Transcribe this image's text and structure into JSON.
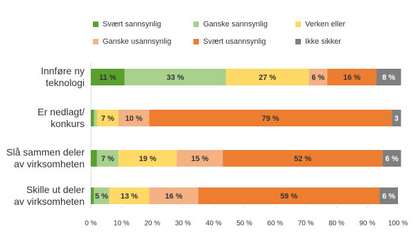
{
  "chart_data": {
    "type": "stacked-bar-horizontal",
    "categories": [
      "Innføre ny\nteknologi",
      "Er nedlagt/\nkonkurs",
      "Slå sammen deler\nav virksomheten",
      "Skille ut deler\nav virksomheten"
    ],
    "series": [
      {
        "name": "Svært sannsynlig",
        "color": "#5b9f2f",
        "values": [
          11,
          1,
          2,
          1
        ],
        "value_labels": [
          "11 %",
          null,
          null,
          null
        ]
      },
      {
        "name": "Ganske sannsynlig",
        "color": "#a9d18e",
        "values": [
          33,
          1,
          7,
          5
        ],
        "value_labels": [
          "33 %",
          null,
          "7 %",
          "5 %"
        ]
      },
      {
        "name": "Verken eller",
        "color": "#ffd966",
        "values": [
          27,
          7,
          19,
          13
        ],
        "value_labels": [
          "27 %",
          "7 %",
          "19 %",
          "13 %"
        ]
      },
      {
        "name": "Ganske usannsynlig",
        "color": "#f4b183",
        "values": [
          6,
          10,
          15,
          16
        ],
        "value_labels": [
          "6 %",
          "10 %",
          "15 %",
          "16 %"
        ]
      },
      {
        "name": "Svært usannsynlig",
        "color": "#ed7d31",
        "values": [
          16,
          79,
          52,
          59
        ],
        "value_labels": [
          "16 %",
          "79 %",
          "52 %",
          "59 %"
        ]
      },
      {
        "name": "Ikke sikker",
        "color": "#7f7f7f",
        "values": [
          8,
          3,
          6,
          6
        ],
        "value_labels": [
          "8 %",
          "3",
          "6 %",
          "6 %"
        ]
      }
    ],
    "xlim": [
      0,
      100
    ],
    "xticks": [
      {
        "value": 0,
        "label": "0 %"
      },
      {
        "value": 10,
        "label": "10 %"
      },
      {
        "value": 20,
        "label": "20 %"
      },
      {
        "value": 30,
        "label": "30 %"
      },
      {
        "value": 40,
        "label": "40 %"
      },
      {
        "value": 50,
        "label": "50 %"
      },
      {
        "value": 60,
        "label": "60 %"
      },
      {
        "value": 70,
        "label": "70 %"
      },
      {
        "value": 80,
        "label": "80 %"
      },
      {
        "value": 90,
        "label": "90 %"
      },
      {
        "value": 100,
        "label": "100 %"
      }
    ]
  }
}
